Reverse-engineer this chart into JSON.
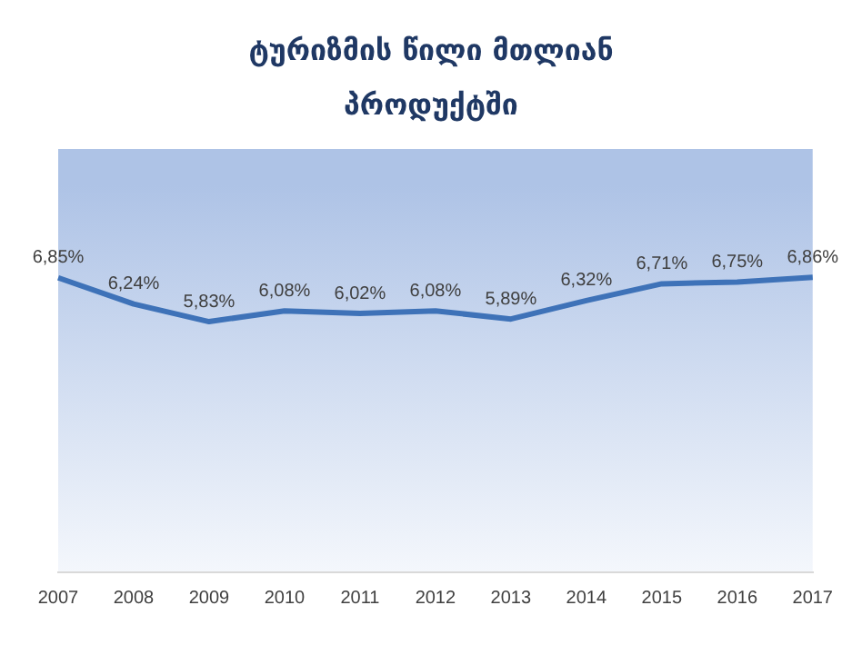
{
  "chart_data": {
    "type": "line",
    "title": "ტურიზმის წილი მთლიან პროდუქტში",
    "categories": [
      "2007",
      "2008",
      "2009",
      "2010",
      "2011",
      "2012",
      "2013",
      "2014",
      "2015",
      "2016",
      "2017"
    ],
    "series": [
      {
        "color": "#3e72b8",
        "values": [
          6.85,
          6.24,
          5.83,
          6.08,
          6.02,
          6.08,
          5.89,
          6.32,
          6.71,
          6.75,
          6.86
        ],
        "value_labels": [
          "6,85%",
          "6,24%",
          "5,83%",
          "6,08%",
          "6,02%",
          "6,08%",
          "5,89%",
          "6,32%",
          "6,71%",
          "6,75%",
          "6,86%"
        ]
      }
    ],
    "tick_labels": "x",
    "grid": false,
    "legend": false,
    "marker": "none",
    "line_style": "solid"
  }
}
